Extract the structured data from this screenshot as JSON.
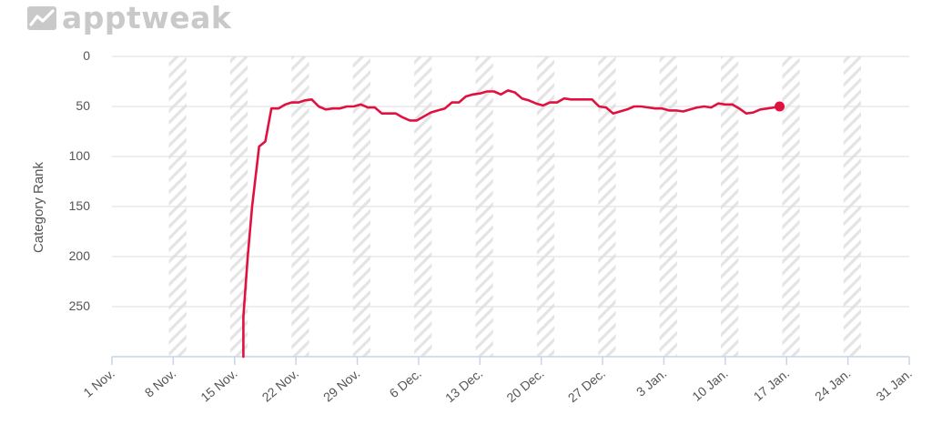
{
  "brand": {
    "logo_text": "apptweak",
    "logo_icon": "chart-trend-icon"
  },
  "colors": {
    "line": "#e0113f",
    "grid": "#dddddd",
    "axis": "#c8d4e8",
    "band_stripe": "#e4e4e4"
  },
  "chart_data": {
    "type": "line",
    "title": "",
    "xlabel": "",
    "ylabel": "Category Rank",
    "y_reversed": true,
    "ylim": [
      0,
      300
    ],
    "y_ticks": [
      0,
      50,
      100,
      150,
      200,
      250
    ],
    "x_tick_labels": [
      "1 Nov.",
      "8 Nov.",
      "15 Nov.",
      "22 Nov.",
      "29 Nov.",
      "6 Dec.",
      "13 Dec.",
      "20 Dec.",
      "27 Dec.",
      "3 Jan.",
      "10 Jan.",
      "17 Jan.",
      "24 Jan.",
      "31 Jan."
    ],
    "weekend_shading": true,
    "legend": "none",
    "series": [
      {
        "values": [
          [
            15,
            300
          ],
          [
            15,
            260
          ],
          [
            15.5,
            200
          ],
          [
            16,
            150
          ],
          [
            16.8,
            90
          ],
          [
            17.5,
            85
          ],
          [
            18.2,
            52
          ],
          [
            19,
            52
          ],
          [
            19.8,
            48
          ],
          [
            20.5,
            46
          ],
          [
            21.3,
            46
          ],
          [
            22,
            44
          ],
          [
            22.8,
            43
          ],
          [
            23.6,
            50
          ],
          [
            24.4,
            53
          ],
          [
            25.2,
            52
          ],
          [
            26,
            52
          ],
          [
            26.8,
            50
          ],
          [
            27.6,
            50
          ],
          [
            28.4,
            48
          ],
          [
            29.2,
            51
          ],
          [
            30,
            51
          ],
          [
            30.8,
            57
          ],
          [
            31.6,
            57
          ],
          [
            32.4,
            57
          ],
          [
            33.2,
            61
          ],
          [
            34,
            64
          ],
          [
            34.8,
            64
          ],
          [
            35.6,
            60
          ],
          [
            36.4,
            56
          ],
          [
            37.2,
            54
          ],
          [
            38,
            52
          ],
          [
            38.8,
            46
          ],
          [
            39.6,
            46
          ],
          [
            40.4,
            40
          ],
          [
            41.2,
            38
          ],
          [
            42,
            37
          ],
          [
            42.8,
            35
          ],
          [
            43.6,
            35
          ],
          [
            44.4,
            38
          ],
          [
            45.2,
            34
          ],
          [
            46,
            36
          ],
          [
            46.8,
            42
          ],
          [
            47.6,
            44
          ],
          [
            48.4,
            47
          ],
          [
            49.2,
            49
          ],
          [
            50,
            46
          ],
          [
            50.8,
            46
          ],
          [
            51.6,
            42
          ],
          [
            52.4,
            43
          ],
          [
            53.2,
            43
          ],
          [
            54,
            43
          ],
          [
            54.8,
            43
          ],
          [
            55.6,
            50
          ],
          [
            56.4,
            51
          ],
          [
            57.2,
            57
          ],
          [
            58,
            55
          ],
          [
            58.8,
            53
          ],
          [
            59.6,
            50
          ],
          [
            60.4,
            50
          ],
          [
            61.2,
            51
          ],
          [
            62,
            52
          ],
          [
            62.8,
            52
          ],
          [
            63.6,
            54
          ],
          [
            64.4,
            54
          ],
          [
            65.2,
            55
          ],
          [
            66,
            53
          ],
          [
            66.8,
            51
          ],
          [
            67.6,
            50
          ],
          [
            68.4,
            51
          ],
          [
            69.2,
            47
          ],
          [
            70,
            48
          ],
          [
            70.8,
            48
          ],
          [
            71.6,
            52
          ],
          [
            72.4,
            57
          ],
          [
            73.2,
            56
          ],
          [
            74,
            53
          ],
          [
            74.8,
            52
          ],
          [
            75.6,
            51
          ],
          [
            76.2,
            50
          ]
        ],
        "end_marker": true
      }
    ]
  }
}
